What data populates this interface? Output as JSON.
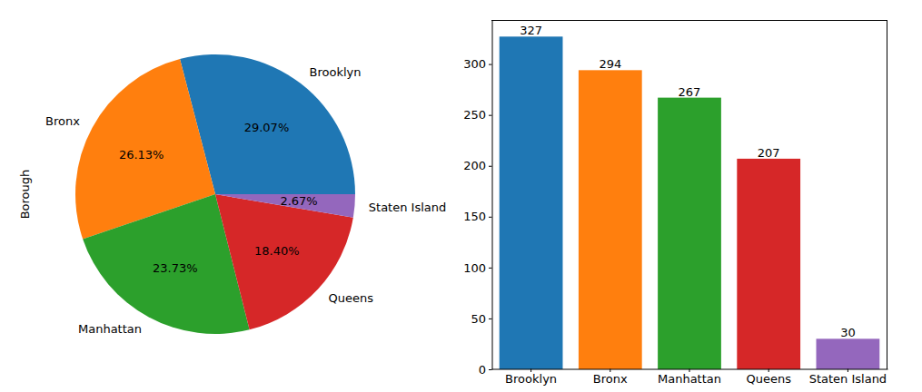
{
  "chart_data": [
    {
      "type": "pie",
      "ylabel": "Borough",
      "categories": [
        "Brooklyn",
        "Bronx",
        "Manhattan",
        "Queens",
        "Staten Island"
      ],
      "values": [
        29.07,
        26.13,
        23.73,
        18.4,
        2.67
      ],
      "value_labels": [
        "29.07%",
        "26.13%",
        "23.73%",
        "18.40%",
        "2.67%"
      ],
      "colors": [
        "#1f77b4",
        "#ff7f0e",
        "#2ca02c",
        "#d62728",
        "#9467bd"
      ],
      "data_labels": true
    },
    {
      "type": "bar",
      "categories": [
        "Brooklyn",
        "Bronx",
        "Manhattan",
        "Queens",
        "Staten Island"
      ],
      "values": [
        327,
        294,
        267,
        207,
        30
      ],
      "colors": [
        "#1f77b4",
        "#ff7f0e",
        "#2ca02c",
        "#d62728",
        "#9467bd"
      ],
      "ylim": [
        0,
        343.35
      ],
      "yticks": [
        0,
        50,
        100,
        150,
        200,
        250,
        300
      ],
      "data_labels": true
    }
  ]
}
